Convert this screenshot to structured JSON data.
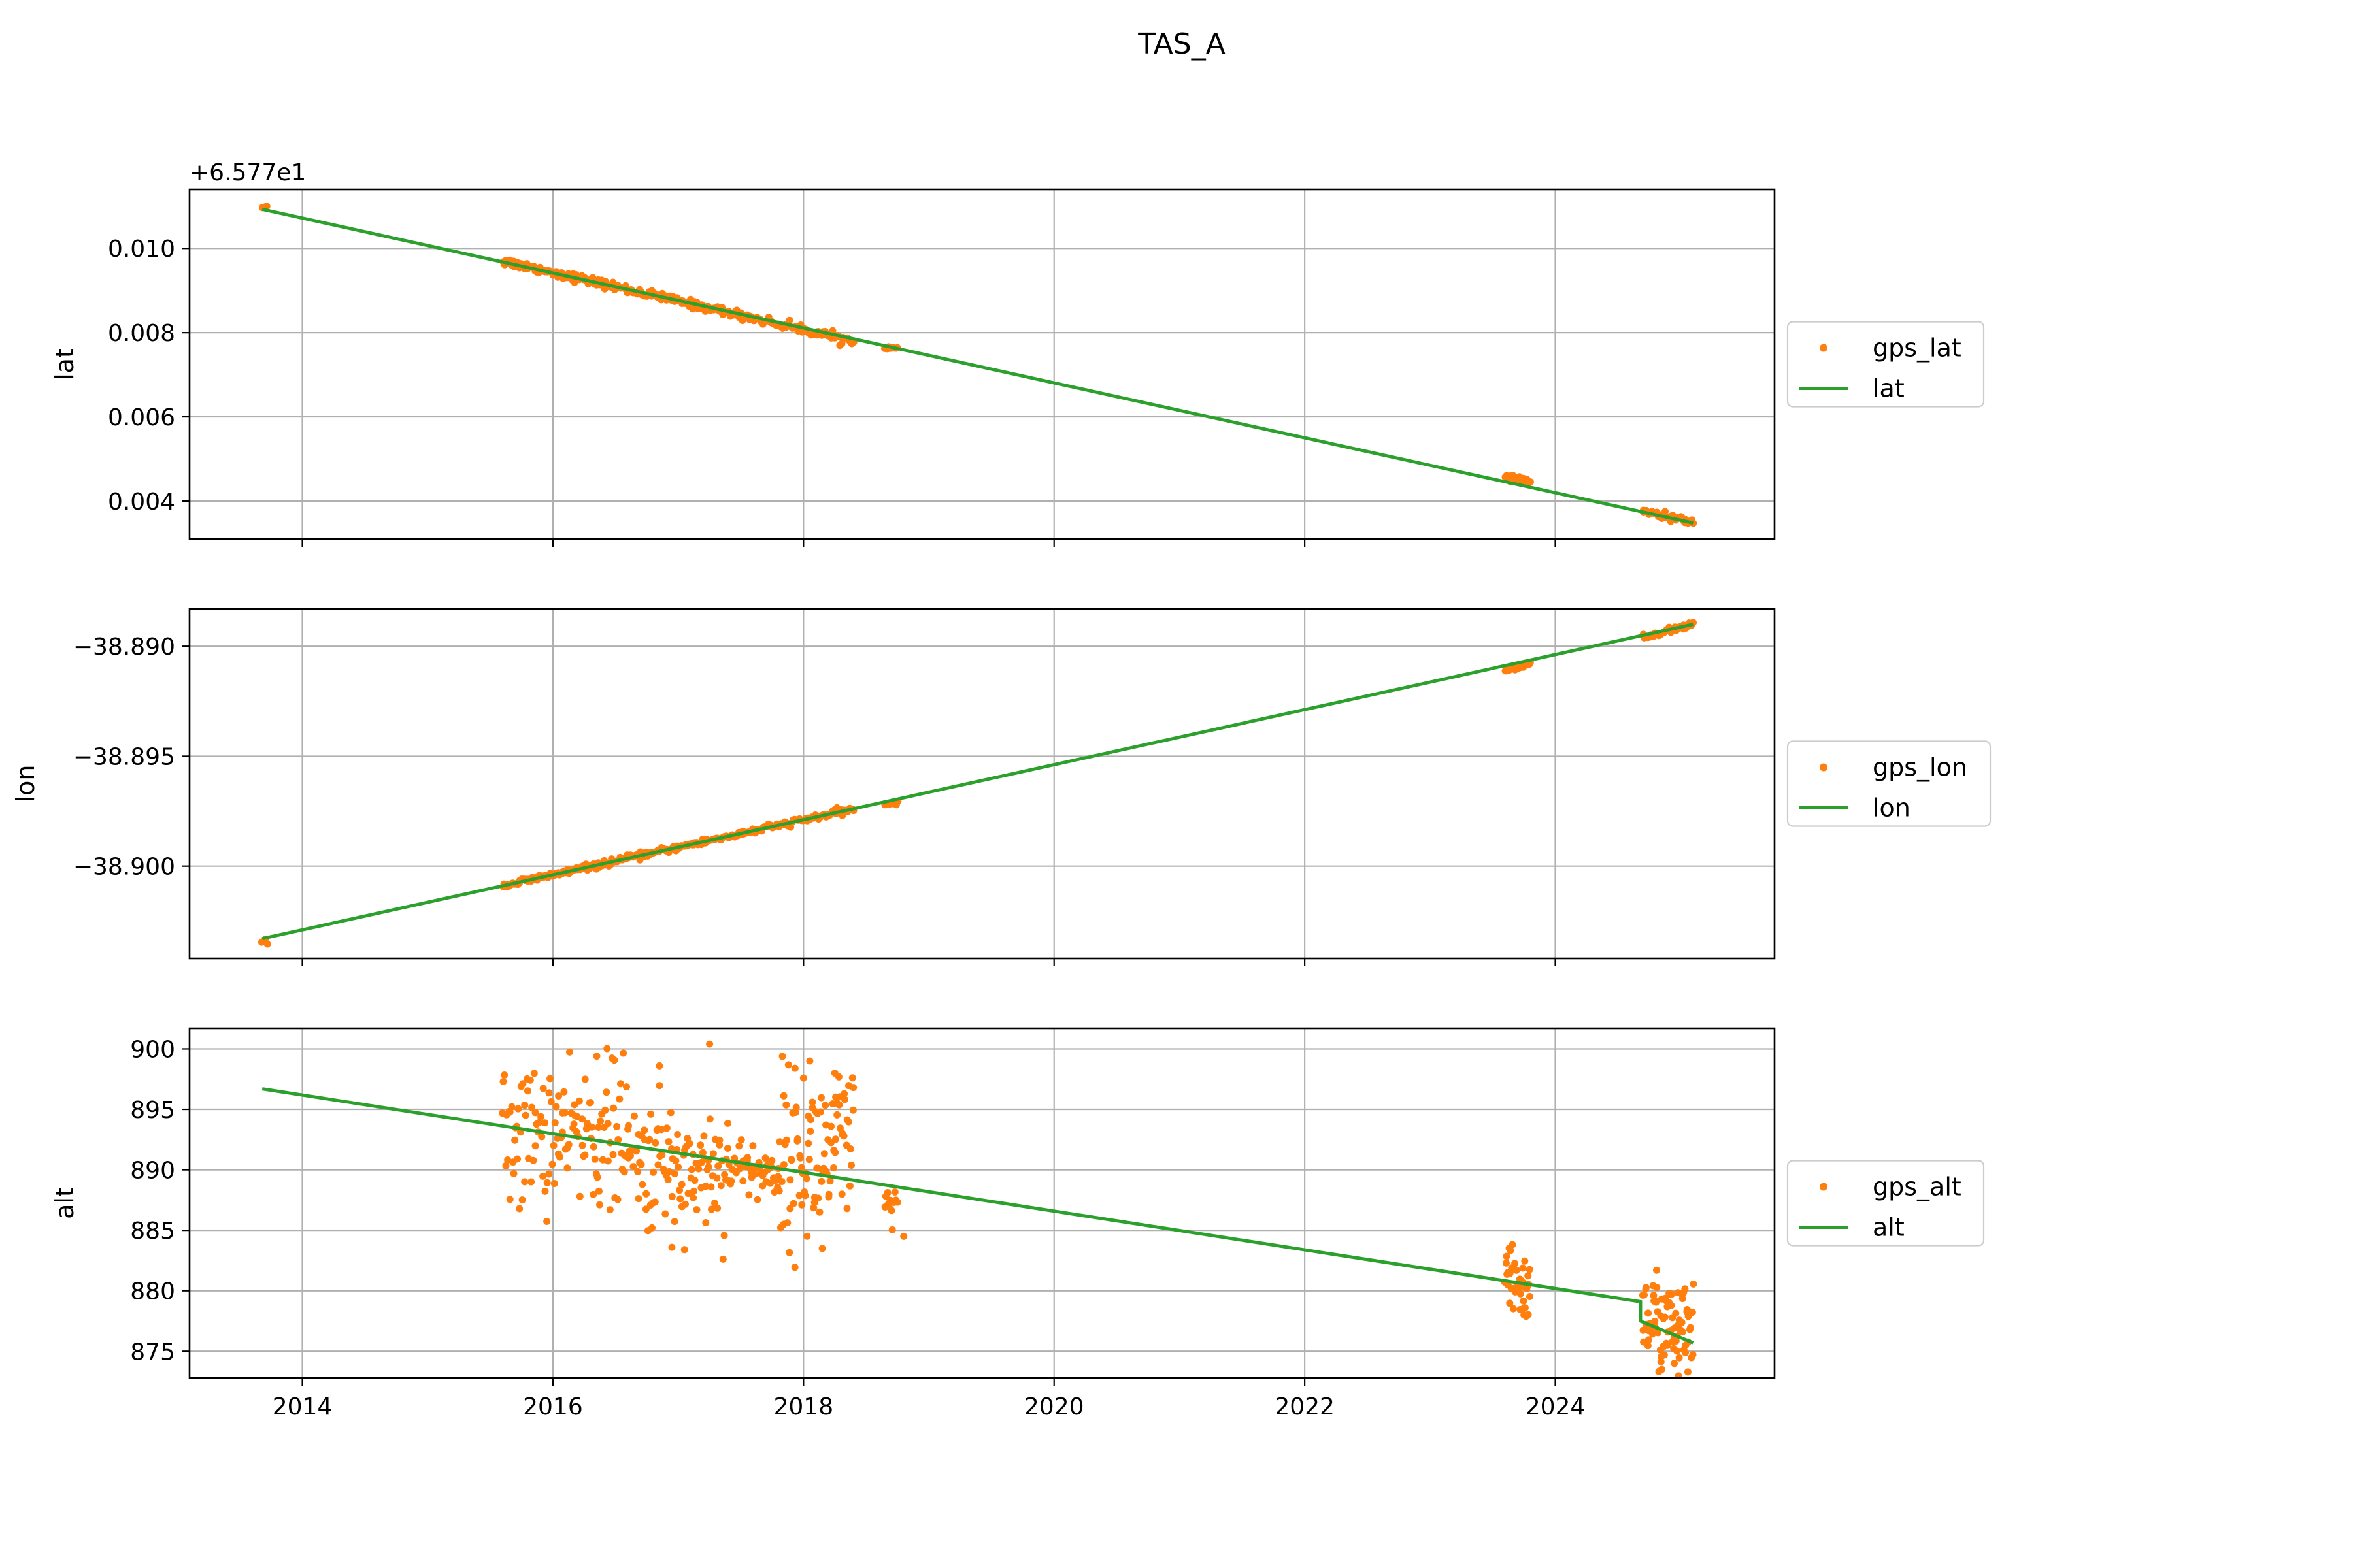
{
  "title": "TAS_A",
  "chart_data": [
    {
      "type": "scatter",
      "ylabel": "lat",
      "xlabel": "",
      "offset_text": "+6.577e1",
      "xlim": [
        2013.1,
        2025.75
      ],
      "ylim": [
        0.0031,
        0.0114
      ],
      "xticks": [
        2014,
        2016,
        2018,
        2020,
        2022,
        2024
      ],
      "xtick_labels": [
        "",
        "",
        "",
        "",
        "",
        ""
      ],
      "yticks": [
        0.004,
        0.006,
        0.008,
        0.01
      ],
      "ytick_labels": [
        "0.004",
        "0.006",
        "0.008",
        "0.010"
      ],
      "grid": true,
      "legend_position": "center-right-outside",
      "colors": {
        "points": "#ff7f0e",
        "line": "#2ca02c"
      },
      "series": [
        {
          "name": "gps_lat",
          "kind": "points",
          "segments": [
            {
              "x0": 2013.68,
              "x1": 2013.72,
              "y0": 0.011,
              "y1": 0.011,
              "jitter": 3e-05,
              "count": 3
            },
            {
              "x0": 2015.6,
              "x1": 2018.4,
              "y0": 0.0097,
              "y1": 0.0078,
              "jitter": 5e-05,
              "count": 240
            },
            {
              "x0": 2018.65,
              "x1": 2018.75,
              "y0": 0.00765,
              "y1": 0.00762,
              "jitter": 2e-05,
              "count": 10
            },
            {
              "x0": 2023.6,
              "x1": 2023.8,
              "y0": 0.00455,
              "y1": 0.00448,
              "jitter": 3e-05,
              "count": 25
            },
            {
              "x0": 2024.7,
              "x1": 2025.1,
              "y0": 0.00375,
              "y1": 0.0035,
              "jitter": 4e-05,
              "count": 45
            }
          ]
        },
        {
          "name": "lat",
          "kind": "line",
          "x": [
            2013.68,
            2025.1
          ],
          "y": [
            0.01093,
            0.00348
          ]
        }
      ]
    },
    {
      "type": "scatter",
      "ylabel": "lon",
      "xlabel": "",
      "offset_text": "",
      "xlim": [
        2013.1,
        2025.75
      ],
      "ylim": [
        -38.9042,
        -38.8883
      ],
      "xticks": [
        2014,
        2016,
        2018,
        2020,
        2022,
        2024
      ],
      "xtick_labels": [
        "",
        "",
        "",
        "",
        "",
        ""
      ],
      "yticks": [
        -38.9,
        -38.895,
        -38.89
      ],
      "ytick_labels": [
        "−38.900",
        "−38.895",
        "−38.890"
      ],
      "grid": true,
      "legend_position": "center-right-outside",
      "colors": {
        "points": "#ff7f0e",
        "line": "#2ca02c"
      },
      "series": [
        {
          "name": "gps_lon",
          "kind": "points",
          "segments": [
            {
              "x0": 2013.68,
              "x1": 2013.72,
              "y0": -38.9034,
              "y1": -38.9034,
              "jitter": 5e-05,
              "count": 3
            },
            {
              "x0": 2015.6,
              "x1": 2018.4,
              "y0": -38.9009,
              "y1": -38.8974,
              "jitter": 7e-05,
              "count": 240
            },
            {
              "x0": 2018.65,
              "x1": 2018.75,
              "y0": -38.8972,
              "y1": -38.8971,
              "jitter": 4e-05,
              "count": 10
            },
            {
              "x0": 2023.6,
              "x1": 2023.8,
              "y0": -38.8911,
              "y1": -38.8908,
              "jitter": 5e-05,
              "count": 25
            },
            {
              "x0": 2024.7,
              "x1": 2025.1,
              "y0": -38.8896,
              "y1": -38.889,
              "jitter": 6e-05,
              "count": 45
            }
          ]
        },
        {
          "name": "lon",
          "kind": "line",
          "x": [
            2013.68,
            2025.1
          ],
          "y": [
            -38.9033,
            -38.889
          ]
        }
      ]
    },
    {
      "type": "scatter",
      "ylabel": "alt",
      "xlabel": "",
      "offset_text": "",
      "xlim": [
        2013.1,
        2025.75
      ],
      "ylim": [
        872.8,
        901.7
      ],
      "xticks": [
        2014,
        2016,
        2018,
        2020,
        2022,
        2024
      ],
      "xtick_labels": [
        "2014",
        "2016",
        "2018",
        "2020",
        "2022",
        "2024"
      ],
      "yticks": [
        875,
        880,
        885,
        890,
        895,
        900
      ],
      "ytick_labels": [
        "875",
        "880",
        "885",
        "890",
        "895",
        "900"
      ],
      "grid": true,
      "legend_position": "center-right-outside",
      "colors": {
        "points": "#ff7f0e",
        "line": "#2ca02c"
      },
      "series": [
        {
          "name": "gps_alt",
          "kind": "points",
          "segments": [
            {
              "x0": 2015.6,
              "x1": 2016.6,
              "y0": 893.0,
              "y1": 893.0,
              "jitter": 3.0,
              "count": 130
            },
            {
              "x0": 2016.6,
              "x1": 2017.4,
              "y0": 890.5,
              "y1": 890.0,
              "jitter": 2.6,
              "count": 110
            },
            {
              "x0": 2017.4,
              "x1": 2017.8,
              "y0": 890.5,
              "y1": 889.5,
              "jitter": 1.2,
              "count": 50
            },
            {
              "x0": 2017.8,
              "x1": 2018.4,
              "y0": 891.0,
              "y1": 891.5,
              "jitter": 3.5,
              "count": 100
            },
            {
              "x0": 2018.65,
              "x1": 2018.75,
              "y0": 887.5,
              "y1": 886.5,
              "jitter": 1.0,
              "count": 12
            },
            {
              "x0": 2023.6,
              "x1": 2023.8,
              "y0": 881.0,
              "y1": 880.0,
              "jitter": 1.4,
              "count": 45
            },
            {
              "x0": 2024.7,
              "x1": 2025.1,
              "y0": 878.0,
              "y1": 876.0,
              "jitter": 2.0,
              "count": 90
            }
          ],
          "extra_points": [
            {
              "x": 2017.25,
              "y": 900.4
            },
            {
              "x": 2016.35,
              "y": 899.4
            },
            {
              "x": 2018.05,
              "y": 899.0
            },
            {
              "x": 2016.85,
              "y": 898.6
            },
            {
              "x": 2018.25,
              "y": 898.0
            },
            {
              "x": 2017.05,
              "y": 883.4
            },
            {
              "x": 2016.95,
              "y": 883.6
            },
            {
              "x": 2018.15,
              "y": 883.5
            },
            {
              "x": 2018.8,
              "y": 884.5
            },
            {
              "x": 2023.75,
              "y": 878.0
            },
            {
              "x": 2024.85,
              "y": 873.5
            },
            {
              "x": 2024.95,
              "y": 874.0
            }
          ]
        },
        {
          "name": "alt",
          "kind": "line",
          "x": [
            2013.68,
            2024.68,
            2024.68,
            2025.1
          ],
          "y": [
            896.7,
            879.1,
            877.5,
            875.7
          ]
        }
      ]
    }
  ]
}
